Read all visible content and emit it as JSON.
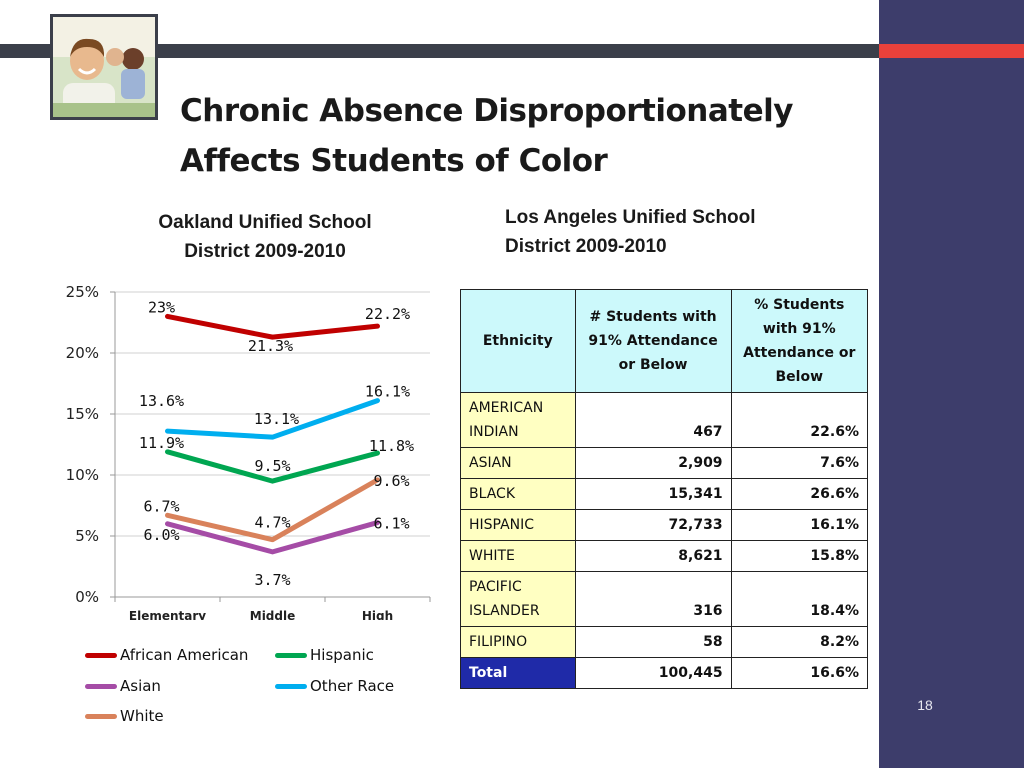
{
  "slide": {
    "title_line1": "Chronic Absence Disproportionately",
    "title_line2": "Affects Students of Color",
    "page_number": "18"
  },
  "colors": {
    "side_panel": "#3d3d6b",
    "top_band": "#3b3f4a",
    "accent": "#e8413b"
  },
  "oakland": {
    "subtitle_line1": "Oakland Unified School",
    "subtitle_line2": "District  2009-2010"
  },
  "chart_data": {
    "type": "line",
    "categories": [
      "Elementary",
      "Middle",
      "High"
    ],
    "ylim": [
      0,
      25
    ],
    "yticks": [
      "0%",
      "5%",
      "10%",
      "15%",
      "20%",
      "25%"
    ],
    "grid": true,
    "legend_position": "bottom",
    "series": [
      {
        "name": "African American",
        "color": "#c00000",
        "values": [
          23,
          21.3,
          22.2
        ],
        "labels": [
          "23%",
          "21.3%",
          "22.2%"
        ]
      },
      {
        "name": "Hispanic",
        "color": "#00a651",
        "values": [
          11.9,
          9.5,
          11.8
        ],
        "labels": [
          "11.9%",
          "9.5%",
          "11.8%"
        ]
      },
      {
        "name": "Asian",
        "color": "#a54ca6",
        "values": [
          6.0,
          3.7,
          6.1
        ],
        "labels": [
          "6.0%",
          "3.7%",
          "6.1%"
        ]
      },
      {
        "name": "Other Race",
        "color": "#00aeef",
        "values": [
          13.6,
          13.1,
          16.1
        ],
        "labels": [
          "13.6%",
          "13.1%",
          "16.1%"
        ]
      },
      {
        "name": "White",
        "color": "#d9825b",
        "values": [
          6.7,
          4.7,
          9.6
        ],
        "labels": [
          "6.7%",
          "4.7%",
          "9.6%"
        ]
      }
    ]
  },
  "la": {
    "subtitle_line1": "Los Angeles Unified School",
    "subtitle_line2": "District  2009-2010",
    "headers": [
      "Ethnicity",
      "# Students with 91% Attendance or Below",
      "% Students with 91% Attendance or Below"
    ],
    "rows": [
      {
        "ethnicity": "AMERICAN INDIAN",
        "count": "467",
        "percent": "22.6%"
      },
      {
        "ethnicity": "ASIAN",
        "count": "2,909",
        "percent": "7.6%"
      },
      {
        "ethnicity": "BLACK",
        "count": "15,341",
        "percent": "26.6%"
      },
      {
        "ethnicity": "HISPANIC",
        "count": "72,733",
        "percent": "16.1%"
      },
      {
        "ethnicity": "WHITE",
        "count": "8,621",
        "percent": "15.8%"
      },
      {
        "ethnicity": "PACIFIC ISLANDER",
        "count": "316",
        "percent": "18.4%"
      },
      {
        "ethnicity": "FILIPINO",
        "count": "58",
        "percent": "8.2%"
      }
    ],
    "total": {
      "label": "Total",
      "count": "100,445",
      "percent": "16.6%"
    }
  }
}
